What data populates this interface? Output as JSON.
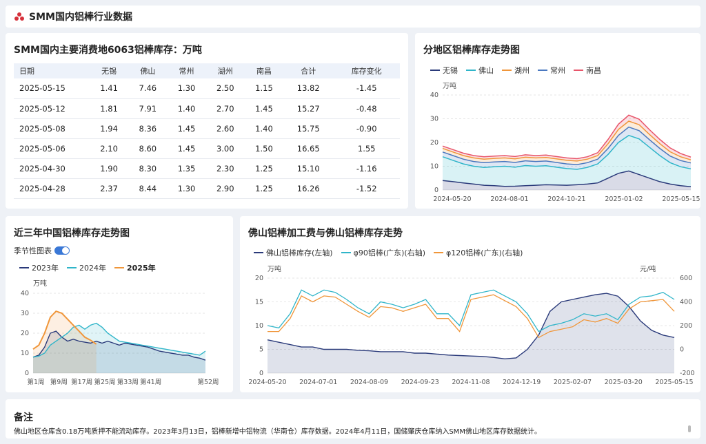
{
  "header": {
    "title": "SMM国内铝棒行业数据"
  },
  "colors": {
    "wuxi": "#2a3a7a",
    "foshan": "#2fb5c9",
    "huzhou": "#f0963a",
    "changzhou": "#4a78c0",
    "nanchang": "#e8556a",
    "y2023": "#2a3a7a",
    "y2024": "#2fb5c9",
    "y2025": "#f0963a",
    "accent": "#3a78d6"
  },
  "table_card": {
    "title": "SMM国内主要消费地6063铝棒库存：万吨",
    "columns": [
      "日期",
      "无锡",
      "佛山",
      "常州",
      "湖州",
      "南昌",
      "合计",
      "库存变化"
    ],
    "rows": [
      [
        "2025-05-15",
        "1.41",
        "7.46",
        "1.30",
        "2.50",
        "1.15",
        "13.82",
        "-1.45"
      ],
      [
        "2025-05-12",
        "1.81",
        "7.91",
        "1.40",
        "2.70",
        "1.45",
        "15.27",
        "-0.48"
      ],
      [
        "2025-05-08",
        "1.94",
        "8.36",
        "1.45",
        "2.60",
        "1.40",
        "15.75",
        "-0.90"
      ],
      [
        "2025-05-06",
        "2.10",
        "8.60",
        "1.45",
        "3.00",
        "1.50",
        "16.65",
        "1.55"
      ],
      [
        "2025-04-30",
        "1.90",
        "8.30",
        "1.35",
        "2.30",
        "1.25",
        "15.10",
        "-1.16"
      ],
      [
        "2025-04-28",
        "2.37",
        "8.44",
        "1.30",
        "2.90",
        "1.25",
        "16.26",
        "-1.52"
      ]
    ]
  },
  "region_card": {
    "title": "分地区铝棒库存走势图",
    "legend": [
      "无锡",
      "佛山",
      "湖州",
      "常州",
      "南昌"
    ],
    "unit": "万吨"
  },
  "season_card": {
    "title": "近三年中国铝棒库存走势图",
    "toggle_label": "季节性图表",
    "legend": [
      "2023年",
      "2024年",
      "2025年"
    ],
    "unit": "万吨"
  },
  "fee_card": {
    "title": "佛山铝棒加工费与佛山铝棒库存走势",
    "legend": [
      "佛山铝棒库存(左轴)",
      "φ90铝棒(广东)(右轴)",
      "φ120铝棒(广东)(右轴)"
    ],
    "unit_left": "万吨",
    "unit_right": "元/吨"
  },
  "notes": {
    "title": "备注",
    "text": "佛山地区仓库含0.18万吨质押不能流动库存。2023年3月13日，铝棒新增中铝物流（华南仓）库存数据。2024年4月11日，国储肇庆仓库纳入SMM佛山地区库存数据统计。"
  },
  "chart_data": [
    {
      "type": "area",
      "title": "分地区铝棒库存走势图",
      "stacked": true,
      "x_ticks": [
        "2024-05-20",
        "2024-08-01",
        "2024-10-21",
        "2025-01-02",
        "2025-05-15"
      ],
      "ylim": [
        0,
        40
      ],
      "y_ticks": [
        0,
        10,
        20,
        30,
        40
      ],
      "series": [
        {
          "name": "无锡",
          "values": [
            4,
            3.5,
            3,
            2.5,
            2,
            1.8,
            1.5,
            1.6,
            1.8,
            2,
            2.2,
            2.1,
            2,
            2.2,
            2.5,
            3,
            5,
            7,
            8,
            6.5,
            5,
            3.5,
            2.5,
            1.8,
            1.4
          ]
        },
        {
          "name": "佛山",
          "values": [
            10,
            9,
            8,
            7.5,
            7.5,
            8,
            8.5,
            8,
            8.5,
            8,
            8,
            7.5,
            7,
            6.5,
            7,
            8,
            10,
            13,
            15,
            15,
            13,
            11,
            9,
            8,
            7.5
          ]
        },
        {
          "name": "湖州",
          "values": [
            2,
            2,
            2,
            2,
            2,
            2,
            2,
            2,
            2,
            2,
            2,
            2,
            2,
            2,
            2,
            2,
            2.5,
            3,
            3.5,
            3.5,
            3.2,
            3,
            2.8,
            2.6,
            2.5
          ]
        },
        {
          "name": "常州",
          "values": [
            1.5,
            1.5,
            1.5,
            1.5,
            1.5,
            1.5,
            1.5,
            1.5,
            1.5,
            1.5,
            1.5,
            1.5,
            1.5,
            1.5,
            1.5,
            1.5,
            2,
            2.5,
            2.5,
            2.5,
            2.2,
            2,
            1.8,
            1.6,
            1.3
          ]
        },
        {
          "name": "南昌",
          "values": [
            1,
            1,
            1,
            1,
            1,
            1,
            1,
            1,
            1,
            1,
            1,
            1,
            1,
            1,
            1,
            1.2,
            1.8,
            2.2,
            2.5,
            2.3,
            2,
            1.8,
            1.6,
            1.4,
            1.15
          ]
        }
      ]
    },
    {
      "type": "line",
      "title": "近三年中国铝棒库存走势图",
      "x_ticks": [
        "第1周",
        "第9周",
        "第17周",
        "第25周",
        "第33周",
        "第41周",
        "第52周"
      ],
      "ylim": [
        0,
        40
      ],
      "y_ticks": [
        0,
        10,
        20,
        30,
        40
      ],
      "series": [
        {
          "name": "2023年",
          "values": [
            8,
            9,
            13,
            20,
            21,
            18,
            16,
            17,
            16,
            15.5,
            15,
            16,
            15,
            16,
            15,
            14,
            15,
            14.5,
            14,
            13.5,
            13,
            12,
            11,
            10.5,
            10,
            9.5,
            9,
            9,
            8,
            7.5,
            6.5
          ]
        },
        {
          "name": "2024年",
          "values": [
            8,
            8.5,
            10,
            14,
            16,
            18,
            20,
            23,
            24,
            22,
            24,
            25,
            23,
            20,
            18,
            16,
            15.5,
            15,
            14.5,
            14,
            13.5,
            13,
            12.5,
            12,
            11.5,
            11,
            10.5,
            10,
            9.5,
            9,
            11
          ]
        },
        {
          "name": "2025年",
          "values": [
            12,
            14,
            20,
            28,
            31,
            30,
            27,
            24,
            21,
            18,
            16.5,
            14.5
          ]
        }
      ]
    },
    {
      "type": "line",
      "title": "佛山铝棒加工费与佛山铝棒库存走势",
      "x_ticks": [
        "2024-05-20",
        "2024-07-01",
        "2024-08-09",
        "2024-09-23",
        "2024-11-08",
        "2024-12-19",
        "2025-02-07",
        "2025-03-20",
        "2025-05-15"
      ],
      "ylim_left": [
        0,
        20
      ],
      "ylim_right": [
        -200,
        600
      ],
      "y_ticks_left": [
        0,
        5,
        10,
        15,
        20
      ],
      "y_ticks_right": [
        -200,
        0,
        200,
        400,
        600
      ],
      "series": [
        {
          "name": "佛山铝棒库存(左轴)",
          "axis": "left",
          "values": [
            7,
            6.5,
            6,
            5.5,
            5.5,
            5,
            5,
            5,
            4.8,
            4.7,
            4.5,
            4.5,
            4.5,
            4.2,
            4.2,
            4,
            3.8,
            3.7,
            3.6,
            3.5,
            3.3,
            3,
            3.2,
            5,
            8,
            13,
            15,
            15.5,
            16,
            16.5,
            16.8,
            16.2,
            14,
            11,
            9,
            8,
            7.5
          ]
        },
        {
          "name": "φ90铝棒(广东)(右轴)",
          "axis": "right",
          "values": [
            200,
            180,
            300,
            500,
            450,
            500,
            480,
            420,
            350,
            300,
            400,
            380,
            350,
            380,
            420,
            300,
            300,
            200,
            460,
            480,
            500,
            450,
            400,
            300,
            150,
            200,
            220,
            250,
            300,
            280,
            300,
            250,
            380,
            440,
            450,
            480,
            420
          ]
        },
        {
          "name": "φ120铝棒(广东)(右轴)",
          "axis": "right",
          "values": [
            150,
            150,
            260,
            450,
            400,
            450,
            440,
            380,
            320,
            270,
            360,
            350,
            320,
            350,
            380,
            260,
            260,
            150,
            420,
            440,
            460,
            410,
            360,
            260,
            100,
            150,
            170,
            190,
            250,
            230,
            260,
            220,
            340,
            400,
            410,
            420,
            320
          ]
        }
      ]
    }
  ]
}
